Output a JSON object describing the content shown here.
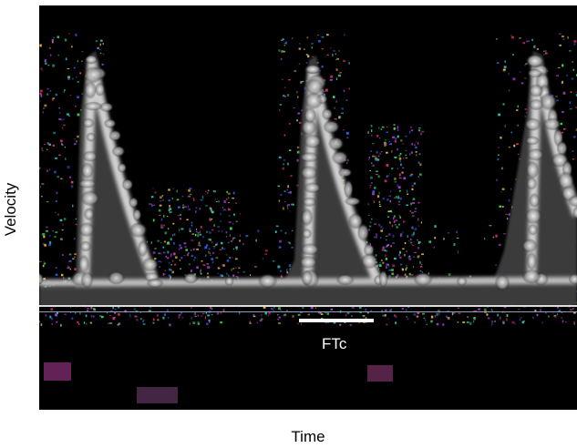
{
  "figure": {
    "y_axis_label": "Velocity",
    "x_axis_label": "Time",
    "annotation_label": "FTc"
  },
  "image": {
    "content": "spectral doppler velocity trace",
    "background_color": "#000000",
    "trace_color": "#d8d8d8",
    "noise_colors": [
      "#e0307a",
      "#40e060",
      "#3060e0",
      "#b040e0",
      "#30c0c0",
      "#f0c040"
    ],
    "marker_color": "#ffffff"
  }
}
